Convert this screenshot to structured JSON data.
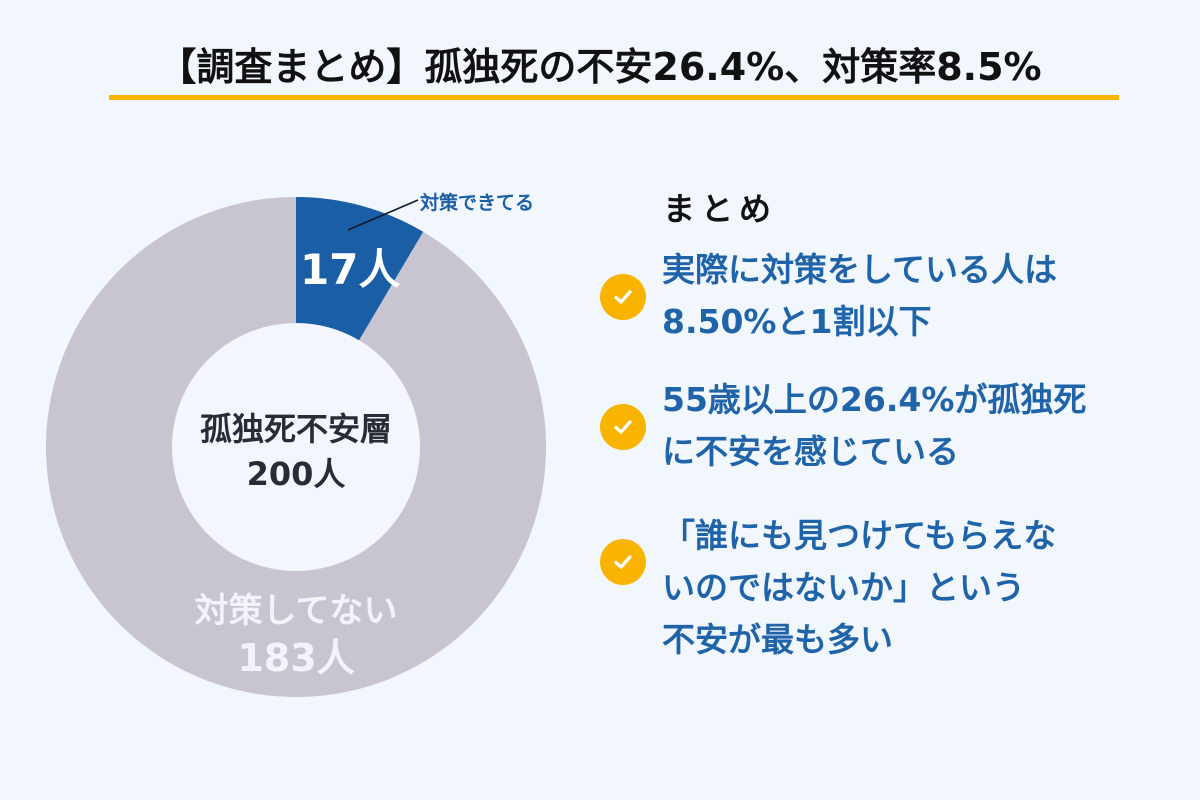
{
  "header": {
    "title": "【調査まとめ】孤独死の不安26.4%、対策率8.5%",
    "underline_color": "#f8b400"
  },
  "chart": {
    "center_label": "孤独死不安層",
    "center_value": "200人",
    "segments": [
      {
        "label": "対策できてる",
        "value_label": "17人",
        "color": "#1a5fa6"
      },
      {
        "label": "対策してない",
        "value_label": "183人",
        "color": "#c8c5d0"
      }
    ]
  },
  "summary": {
    "heading": "まとめ",
    "items": [
      {
        "lines": [
          "実際に対策をしている人は",
          "8.50%と1割以下"
        ]
      },
      {
        "lines": [
          "55歳以上の26.4%が孤独死",
          "に不安を感じている"
        ]
      },
      {
        "lines": [
          "「誰にも見つけてもらえな",
          "いのではないか」という",
          "不安が最も多い"
        ]
      }
    ],
    "check_color": "#f8b400",
    "text_color": "#1f63a8"
  },
  "chart_data": {
    "type": "pie",
    "variant": "donut",
    "title": "孤独死不安層 200人",
    "categories": [
      "対策できてる",
      "対策してない"
    ],
    "values": [
      17,
      183
    ],
    "total": 200,
    "unit": "人",
    "colors": [
      "#1a5fa6",
      "#c8c5d0"
    ],
    "start_angle_deg": 0,
    "direction": "clockwise",
    "legend": "none (direct labels)",
    "annotations": [
      "対策できてる (leader line)",
      "17人",
      "対策してない",
      "183人",
      "孤独死不安層",
      "200人"
    ]
  }
}
